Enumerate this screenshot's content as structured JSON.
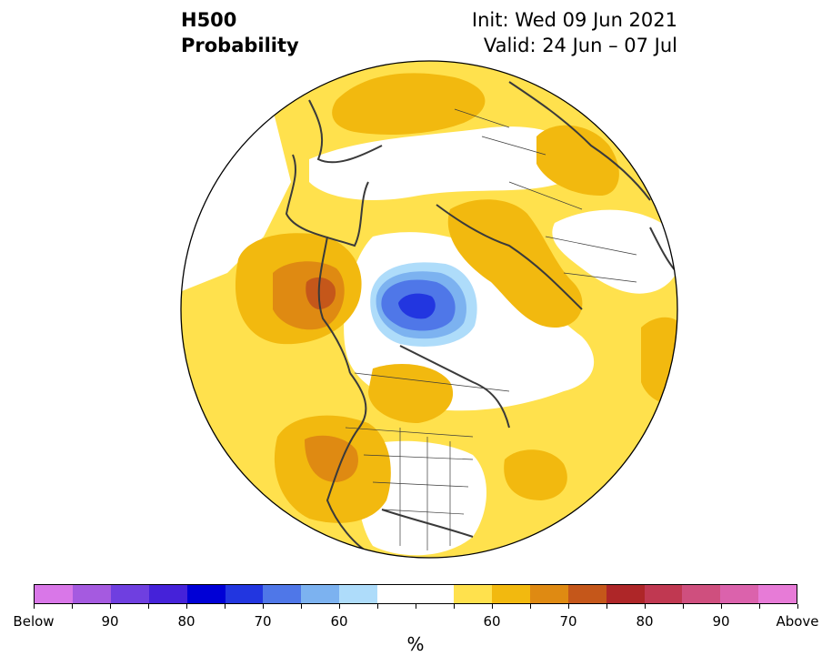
{
  "title": {
    "line1": "H500",
    "line2": "Probability",
    "init": "Init: Wed 09 Jun 2021",
    "valid": "Valid: 24 Jun – 07 Jul"
  },
  "colorbar": {
    "colors": [
      "#d977e8",
      "#a55ae0",
      "#6f3fe0",
      "#4522d9",
      "#0000d6",
      "#2236e0",
      "#4f77e8",
      "#7cb2f0",
      "#aedcfa",
      "#ffffff",
      "#ffffff",
      "#ffe14d",
      "#f2b90f",
      "#df8a12",
      "#c5571a",
      "#ae2628",
      "#c03851",
      "#cf4f7e",
      "#db62ac",
      "#e77bd7"
    ],
    "tick_labels": [
      "Below",
      "90",
      "80",
      "70",
      "60",
      "60",
      "70",
      "80",
      "90",
      "Above"
    ],
    "unit": "%"
  },
  "colors": {
    "near_normal": "#ffffff",
    "above_60": "#ffe14d",
    "above_65": "#f2b90f",
    "above_70": "#df8a12",
    "above_75": "#c5571a",
    "below_60": "#aedcfa",
    "below_65": "#7cb2f0",
    "below_70": "#4f77e8",
    "below_75": "#2236e0",
    "coastline": "#3a3a3a"
  }
}
